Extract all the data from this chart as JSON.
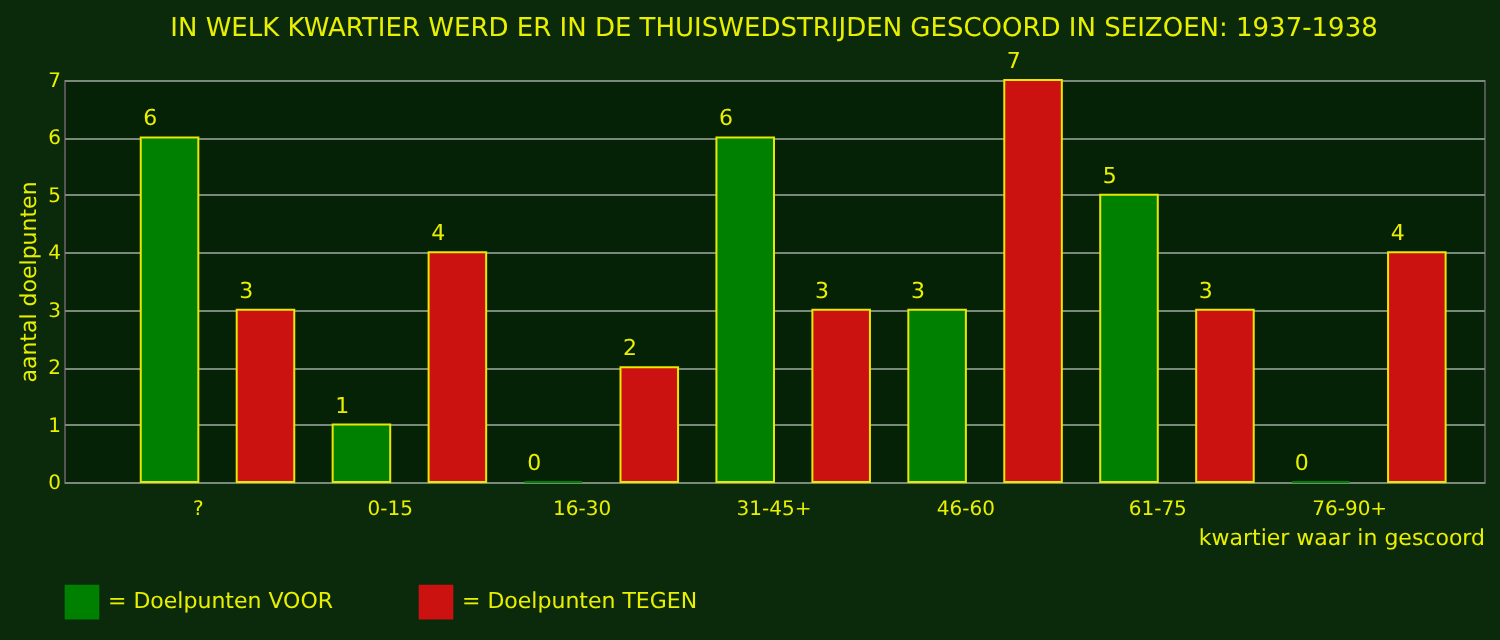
{
  "chart_data": {
    "type": "bar",
    "title": "IN WELK KWARTIER WERD ER IN DE THUISWEDSTRIJDEN GESCOORD IN SEIZOEN: 1937-1938",
    "xlabel": "kwartier waar in gescoord",
    "ylabel": "aantal doelpunten",
    "categories": [
      "?",
      "0-15",
      "16-30",
      "31-45+",
      "46-60",
      "61-75",
      "76-90+"
    ],
    "series": [
      {
        "name": "= Doelpunten VOOR",
        "color": "#008000",
        "values": [
          6,
          1,
          0,
          6,
          3,
          5,
          0
        ]
      },
      {
        "name": "= Doelpunten TEGEN",
        "color": "#cc1111",
        "values": [
          3,
          4,
          2,
          3,
          7,
          3,
          4
        ]
      }
    ],
    "ylim": [
      0,
      7
    ],
    "yticks": [
      0,
      1,
      2,
      3,
      4,
      5,
      6,
      7
    ],
    "grid": "y",
    "legend": "bottom",
    "data_labels": true
  }
}
